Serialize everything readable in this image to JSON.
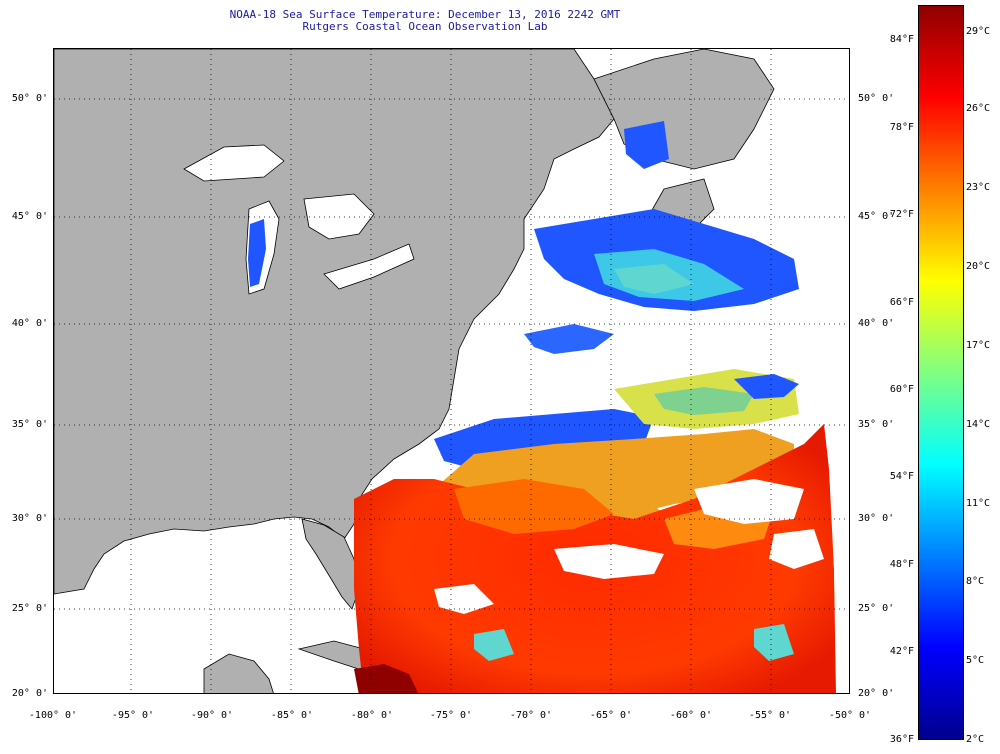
{
  "title": {
    "line1": "NOAA-18 Sea Surface Temperature:  December 13, 2016 2242 GMT",
    "line2": "Rutgers Coastal Ocean Observation Lab"
  },
  "colors": {
    "land": "#b0b0b0",
    "cloud": "#ffffff",
    "title_text": "#1a1aa6",
    "colormap": [
      "#00008f",
      "#0000ff",
      "#0080ff",
      "#00ffff",
      "#80ff80",
      "#ffff00",
      "#ff8000",
      "#ff0000",
      "#8f0000"
    ]
  },
  "lat_labels": [
    "50° 0'",
    "45° 0'",
    "40° 0'",
    "35° 0'",
    "30° 0'",
    "25° 0'",
    "20° 0'"
  ],
  "lon_labels": [
    "-100° 0'",
    "-95° 0'",
    "-90° 0'",
    "-85° 0'",
    "-80° 0'",
    "-75° 0'",
    "-70° 0'",
    "-65° 0'",
    "-60° 0'",
    "-55° 0'",
    "-50° 0'"
  ],
  "colorbar": {
    "fahrenheit": [
      "84°F",
      "78°F",
      "72°F",
      "66°F",
      "60°F",
      "54°F",
      "48°F",
      "42°F",
      "36°F"
    ],
    "celsius": [
      "29°C",
      "26°C",
      "23°C",
      "20°C",
      "17°C",
      "14°C",
      "11°C",
      "8°C",
      "5°C",
      "2°C"
    ]
  }
}
